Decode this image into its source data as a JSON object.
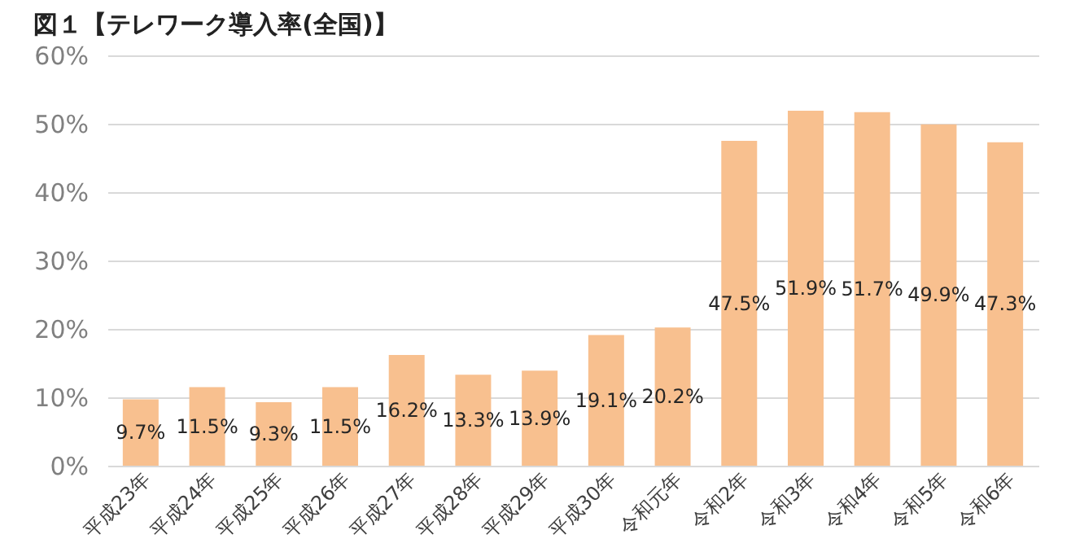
{
  "chart_data": {
    "type": "bar",
    "title": "図１【テレワーク導入率(全国)】",
    "categories": [
      "平成23年",
      "平成24年",
      "平成25年",
      "平成26年",
      "平成27年",
      "平成28年",
      "平成29年",
      "平成30年",
      "令和元年",
      "令和2年",
      "令和3年",
      "令和4年",
      "令和5年",
      "令和6年"
    ],
    "values": [
      9.7,
      11.5,
      9.3,
      11.5,
      16.2,
      13.3,
      13.9,
      19.1,
      20.2,
      47.5,
      51.9,
      51.7,
      49.9,
      47.3
    ],
    "value_labels": [
      "9.7%",
      "11.5%",
      "9.3%",
      "11.5%",
      "16.2%",
      "13.3%",
      "13.9%",
      "19.1%",
      "20.2%",
      "47.5%",
      "51.9%",
      "51.7%",
      "49.9%",
      "47.3%"
    ],
    "color": "#f8c08f",
    "ylim": [
      0,
      60
    ],
    "yticks": [
      {
        "value": 0,
        "label": "0%"
      },
      {
        "value": 10,
        "label": "10%"
      },
      {
        "value": 20,
        "label": "20%"
      },
      {
        "value": 30,
        "label": "30%"
      },
      {
        "value": 40,
        "label": "40%"
      },
      {
        "value": 50,
        "label": "50%"
      },
      {
        "value": 60,
        "label": "60%"
      }
    ],
    "grid": "y"
  }
}
